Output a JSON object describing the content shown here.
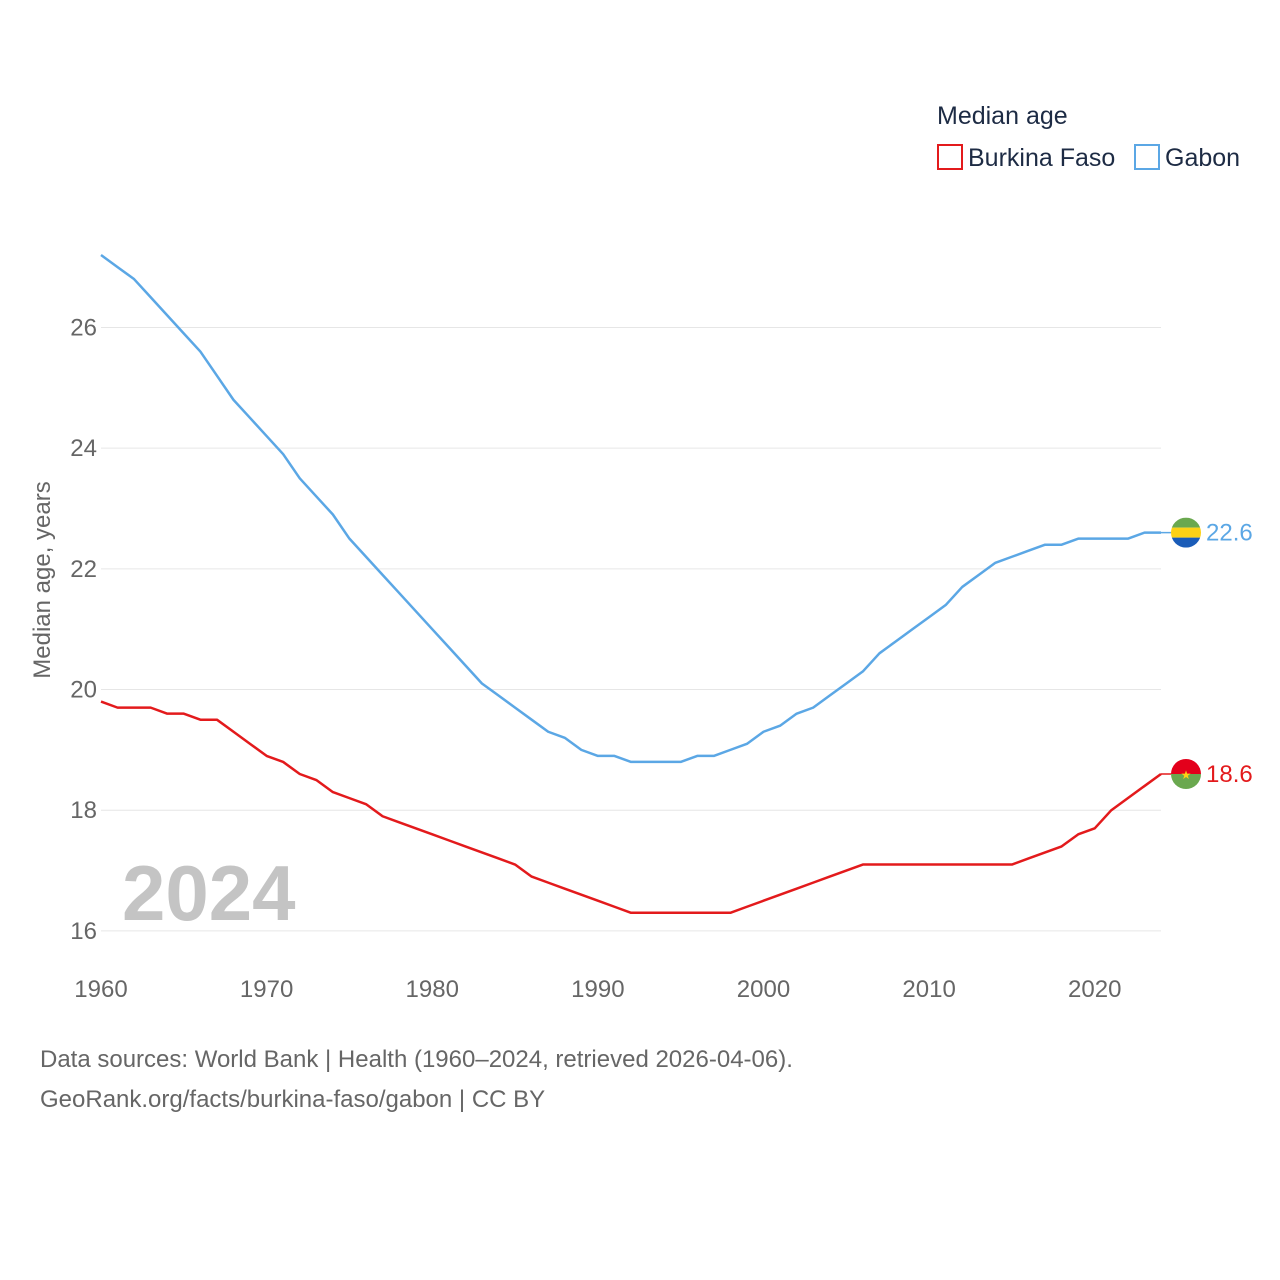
{
  "chart_data": {
    "type": "line",
    "title": "Median age",
    "ylabel": "Median age, years",
    "xlabel": "",
    "xlim": [
      1960,
      2024
    ],
    "ylim": [
      15.7,
      27.3
    ],
    "x_ticks": [
      1960,
      1970,
      1980,
      1990,
      2000,
      2010,
      2020
    ],
    "y_ticks": [
      16,
      18,
      20,
      22,
      24,
      26
    ],
    "grid": true,
    "legend_position": "top-right",
    "watermark_year": "2024",
    "x": [
      1960,
      1961,
      1962,
      1963,
      1964,
      1965,
      1966,
      1967,
      1968,
      1969,
      1970,
      1971,
      1972,
      1973,
      1974,
      1975,
      1976,
      1977,
      1978,
      1979,
      1980,
      1981,
      1982,
      1983,
      1984,
      1985,
      1986,
      1987,
      1988,
      1989,
      1990,
      1991,
      1992,
      1993,
      1994,
      1995,
      1996,
      1997,
      1998,
      1999,
      2000,
      2001,
      2002,
      2003,
      2004,
      2005,
      2006,
      2007,
      2008,
      2009,
      2010,
      2011,
      2012,
      2013,
      2014,
      2015,
      2016,
      2017,
      2018,
      2019,
      2020,
      2021,
      2022,
      2023,
      2024
    ],
    "series": [
      {
        "name": "Burkina Faso",
        "color": "#e31a1c",
        "end_label": "18.6",
        "flag": "burkina-faso-flag",
        "values": [
          19.8,
          19.7,
          19.7,
          19.7,
          19.6,
          19.6,
          19.5,
          19.5,
          19.3,
          19.1,
          18.9,
          18.8,
          18.6,
          18.5,
          18.3,
          18.2,
          18.1,
          17.9,
          17.8,
          17.7,
          17.6,
          17.5,
          17.4,
          17.3,
          17.2,
          17.1,
          16.9,
          16.8,
          16.7,
          16.6,
          16.5,
          16.4,
          16.3,
          16.3,
          16.3,
          16.3,
          16.3,
          16.3,
          16.3,
          16.4,
          16.5,
          16.6,
          16.7,
          16.8,
          16.9,
          17.0,
          17.1,
          17.1,
          17.1,
          17.1,
          17.1,
          17.1,
          17.1,
          17.1,
          17.1,
          17.1,
          17.2,
          17.3,
          17.4,
          17.6,
          17.7,
          18.0,
          18.2,
          18.4,
          18.6
        ]
      },
      {
        "name": "Gabon",
        "color": "#5ba7e5",
        "end_label": "22.6",
        "flag": "gabon-flag",
        "values": [
          27.2,
          27.0,
          26.8,
          26.5,
          26.2,
          25.9,
          25.6,
          25.2,
          24.8,
          24.5,
          24.2,
          23.9,
          23.5,
          23.2,
          22.9,
          22.5,
          22.2,
          21.9,
          21.6,
          21.3,
          21.0,
          20.7,
          20.4,
          20.1,
          19.9,
          19.7,
          19.5,
          19.3,
          19.2,
          19.0,
          18.9,
          18.9,
          18.8,
          18.8,
          18.8,
          18.8,
          18.9,
          18.9,
          19.0,
          19.1,
          19.3,
          19.4,
          19.6,
          19.7,
          19.9,
          20.1,
          20.3,
          20.6,
          20.8,
          21.0,
          21.2,
          21.4,
          21.7,
          21.9,
          22.1,
          22.2,
          22.3,
          22.4,
          22.4,
          22.5,
          22.5,
          22.5,
          22.5,
          22.6,
          22.6
        ]
      }
    ]
  },
  "footer": {
    "line1": "Data sources: World Bank | Health (1960–2024, retrieved 2026-04-06).",
    "line2": "GeoRank.org/facts/burkina-faso/gabon | CC BY"
  }
}
